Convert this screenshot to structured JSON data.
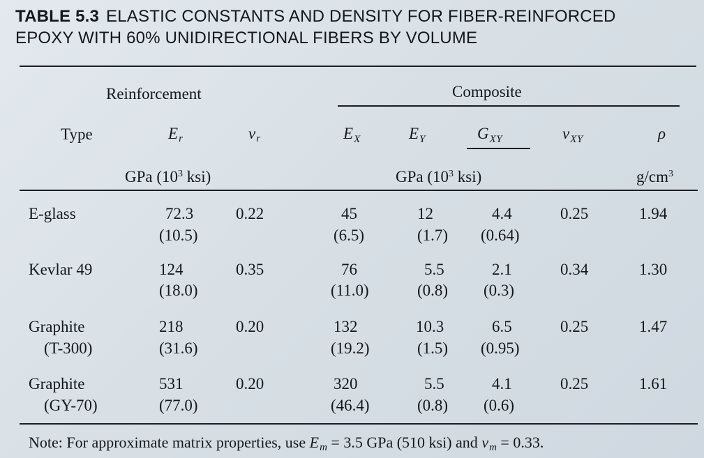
{
  "title": {
    "number": "TABLE 5.3",
    "caption_line1": "ELASTIC CONSTANTS AND DENSITY FOR FIBER-REINFORCED",
    "caption_line2": "EPOXY WITH 60% UNIDIRECTIONAL FIBERS BY VOLUME"
  },
  "groups": {
    "reinforcement": "Reinforcement",
    "composite": "Composite"
  },
  "columns": {
    "type": "Type",
    "er_symbol": "E",
    "er_sub": "r",
    "nur_symbol": "ν",
    "nur_sub": "r",
    "ex_symbol": "E",
    "ex_sub": "X",
    "ey_symbol": "E",
    "ey_sub": "Y",
    "gxy_symbol": "G",
    "gxy_sub": "XY",
    "nuxy_symbol": "ν",
    "nuxy_sub": "XY",
    "rho_symbol": "ρ"
  },
  "units": {
    "reinforcement": "GPa (10",
    "reinforcement_sup": "3",
    "reinforcement_tail": " ksi)",
    "composite": "GPa (10",
    "composite_sup": "3",
    "composite_tail": " ksi)",
    "density": "g/cm",
    "density_sup": "3"
  },
  "rows": [
    {
      "type_line1": "E-glass",
      "type_line2": "",
      "er": "72.3",
      "er_ksi": "(10.5)",
      "nur": "0.22",
      "ex": "45",
      "ex_ksi": "(6.5)",
      "ey": "12",
      "ey_ksi": "(1.7)",
      "gxy": "4.4",
      "gxy_ksi": "(0.64)",
      "nuxy": "0.25",
      "rho": "1.94"
    },
    {
      "type_line1": "Kevlar 49",
      "type_line2": "",
      "er": "124",
      "er_ksi": "(18.0)",
      "nur": "0.35",
      "ex": "76",
      "ex_ksi": "(11.0)",
      "ey": "5.5",
      "ey_ksi": "(0.8)",
      "gxy": "2.1",
      "gxy_ksi": "(0.3)",
      "nuxy": "0.34",
      "rho": "1.30"
    },
    {
      "type_line1": "Graphite",
      "type_line2": "(T-300)",
      "er": "218",
      "er_ksi": "(31.6)",
      "nur": "0.20",
      "ex": "132",
      "ex_ksi": "(19.2)",
      "ey": "10.3",
      "ey_ksi": "(1.5)",
      "gxy": "6.5",
      "gxy_ksi": "(0.95)",
      "nuxy": "0.25",
      "rho": "1.47"
    },
    {
      "type_line1": "Graphite",
      "type_line2": "(GY-70)",
      "er": "531",
      "er_ksi": "(77.0)",
      "nur": "0.20",
      "ex": "320",
      "ex_ksi": "(46.4)",
      "ey": "5.5",
      "ey_ksi": "(0.8)",
      "gxy": "4.1",
      "gxy_ksi": "(0.6)",
      "nuxy": "0.25",
      "rho": "1.61"
    }
  ],
  "note": {
    "prefix": "Note: For approximate matrix properties, use ",
    "em_symbol": "E",
    "em_sub": "m",
    "em_value": " = 3.5 GPa (510 ksi) and ",
    "num_symbol": "ν",
    "num_sub": "m",
    "num_value": " = 0.33."
  }
}
